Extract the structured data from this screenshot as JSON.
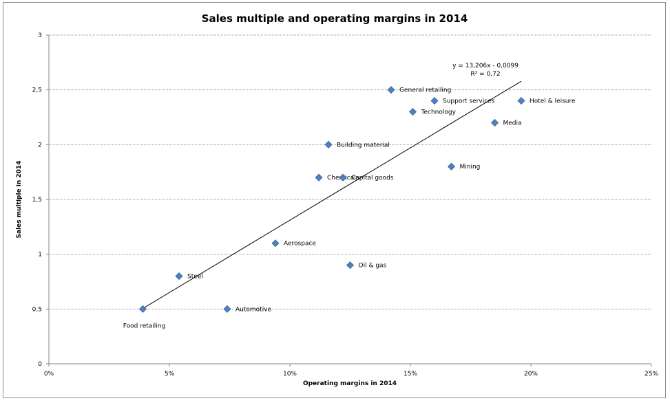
{
  "chart_data": {
    "type": "scatter",
    "title": "Sales multiple and operating margins in 2014",
    "xlabel": "Operating margins in 2014",
    "ylabel": "Sales multiple in 2014",
    "xlim": [
      0,
      0.25
    ],
    "ylim": [
      0,
      3
    ],
    "x_ticks": [
      "0%",
      "5%",
      "10%",
      "15%",
      "20%",
      "25%"
    ],
    "y_ticks": [
      "0",
      "0,5",
      "1",
      "1,5",
      "2",
      "2,5",
      "3"
    ],
    "grid": "horizontal",
    "marker_color": "#4f81bd",
    "points": [
      {
        "label": "Food retailing",
        "x": 0.039,
        "y": 0.5
      },
      {
        "label": "Steel",
        "x": 0.054,
        "y": 0.8
      },
      {
        "label": "Automotive",
        "x": 0.074,
        "y": 0.5
      },
      {
        "label": "Aerospace",
        "x": 0.094,
        "y": 1.1
      },
      {
        "label": "Chemicals",
        "x": 0.112,
        "y": 1.7
      },
      {
        "label": "Capital goods",
        "x": 0.122,
        "y": 1.7
      },
      {
        "label": "Building material",
        "x": 0.116,
        "y": 2.0
      },
      {
        "label": "Oil & gas",
        "x": 0.125,
        "y": 0.9
      },
      {
        "label": "General retailing",
        "x": 0.142,
        "y": 2.5
      },
      {
        "label": "Technology",
        "x": 0.151,
        "y": 2.3
      },
      {
        "label": "Support services",
        "x": 0.16,
        "y": 2.4
      },
      {
        "label": "Mining",
        "x": 0.167,
        "y": 1.8
      },
      {
        "label": "Media",
        "x": 0.185,
        "y": 2.2
      },
      {
        "label": "Hotel & leisure",
        "x": 0.196,
        "y": 2.4
      }
    ],
    "trendline": {
      "slope": 13.206,
      "intercept": -0.0099,
      "x_range": [
        0.039,
        0.196
      ],
      "equation": "y = 13,206x - 0,0099",
      "r_squared": "R² = 0,72"
    }
  }
}
